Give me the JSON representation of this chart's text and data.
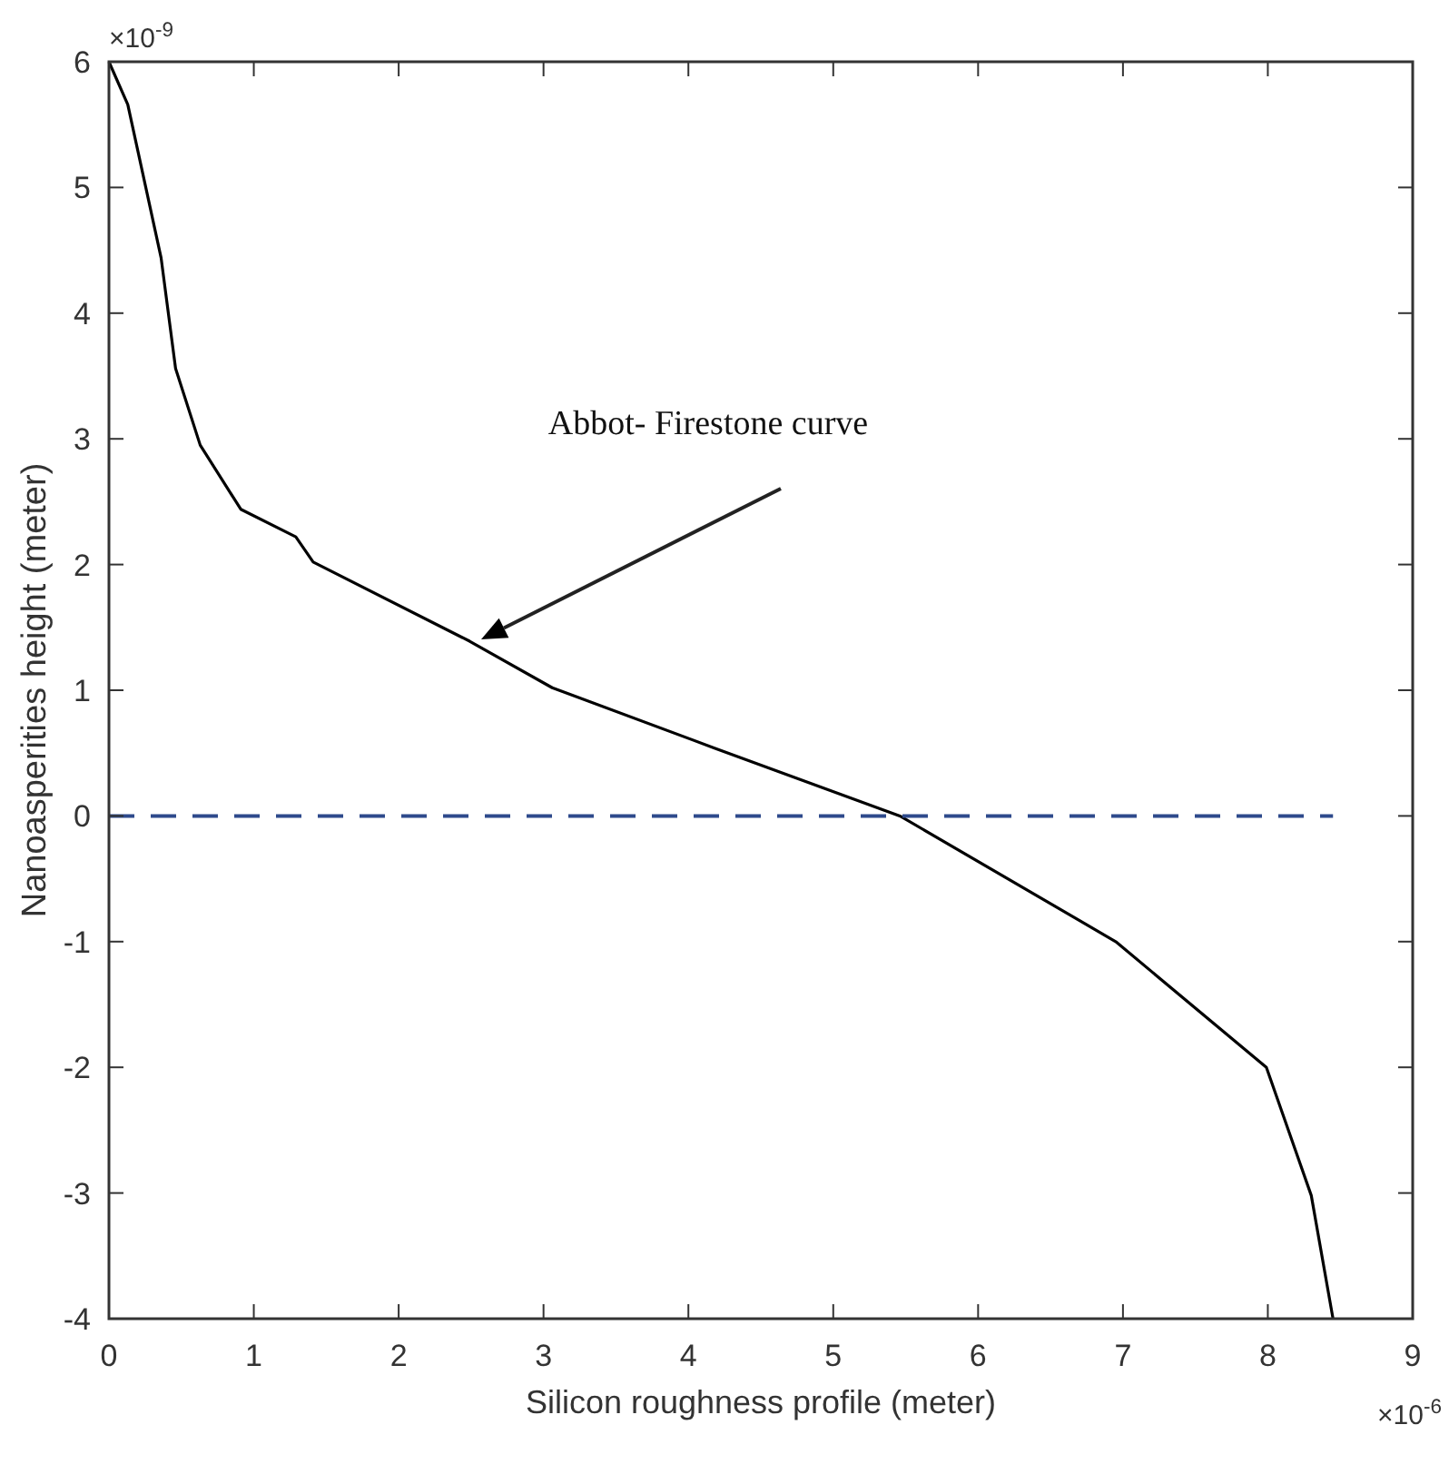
{
  "chart_data": {
    "type": "line",
    "xlabel": "Silicon roughness profile (meter)",
    "ylabel": "Nanoasperities height  (meter)",
    "xlim": [
      0,
      9
    ],
    "ylim": [
      -4,
      6
    ],
    "xticks": [
      0,
      1,
      2,
      3,
      4,
      5,
      6,
      7,
      8,
      9
    ],
    "yticks": [
      -4,
      -3,
      -2,
      -1,
      0,
      1,
      2,
      3,
      4,
      5,
      6
    ],
    "grid": false,
    "series": [
      {
        "color": "#000000",
        "line_style": "solid",
        "x": [
          0,
          0.13,
          0.36,
          0.46,
          0.63,
          0.91,
          1.29,
          1.41,
          2.49,
          3.06,
          4.18,
          5.46,
          6.95,
          7.99,
          8.3,
          8.45
        ],
        "values": [
          6,
          5.66,
          4.44,
          3.56,
          2.95,
          2.44,
          2.22,
          2.02,
          1.39,
          1.02,
          0.54,
          0,
          -1,
          -2,
          -3.02,
          -4
        ]
      },
      {
        "color": "#2e4a8c",
        "line_style": "dashed",
        "x": [
          0,
          8.45
        ],
        "values": [
          0,
          0
        ]
      }
    ],
    "annotations": [
      "Abbot- Firestone curve",
      "×10$^{-9}$",
      "×10$^{-6}$"
    ]
  }
}
